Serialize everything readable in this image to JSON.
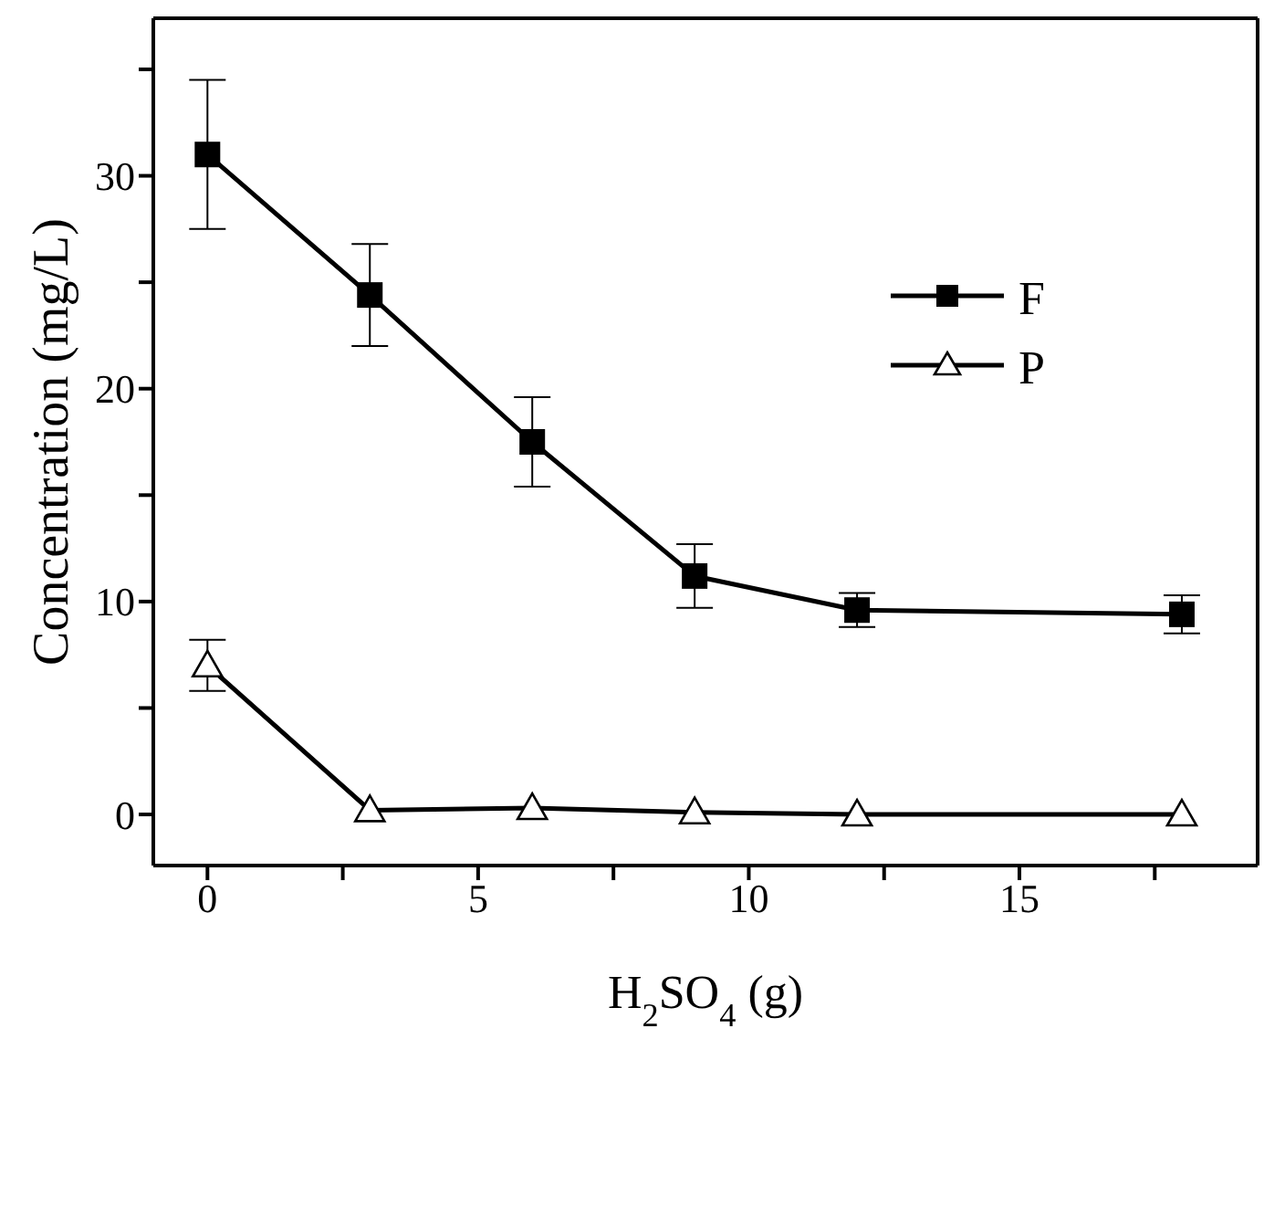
{
  "chart_data": {
    "type": "line",
    "xlabel": "H$_{2}$SO$_{4}$ (g)",
    "ylabel": "Concentration (mg/L)",
    "x": [
      0,
      3,
      6,
      9,
      12,
      18
    ],
    "series": [
      {
        "name": "F",
        "color": "#000000",
        "marker": "square",
        "values": [
          31,
          24.4,
          17.5,
          11.2,
          9.6,
          9.4
        ],
        "errors": [
          3.5,
          2.4,
          2.1,
          1.5,
          0.8,
          0.9
        ]
      },
      {
        "name": "P",
        "color": "#000000",
        "marker": "triangle",
        "values": [
          7.0,
          0.2,
          0.3,
          0.1,
          0.0,
          0.0
        ],
        "errors": [
          1.2,
          null,
          null,
          null,
          null,
          null
        ]
      }
    ],
    "xlim": [
      -1,
      19.4
    ],
    "xticks": [
      0,
      {
        "value": 2.5,
        "label": null
      },
      5,
      {
        "value": 7.5,
        "label": null
      },
      10,
      {
        "value": 12.5,
        "label": null
      },
      15,
      {
        "value": 17.5,
        "label": null
      }
    ],
    "ylim": [
      -2.4,
      37.4
    ],
    "yticks": [
      0,
      {
        "value": 5,
        "label": null
      },
      10,
      {
        "value": 15,
        "label": null
      },
      20,
      {
        "value": 25,
        "label": null
      },
      30,
      {
        "value": 35,
        "label": null
      }
    ],
    "grid": false,
    "legend": "top right",
    "line_style": "solid"
  }
}
